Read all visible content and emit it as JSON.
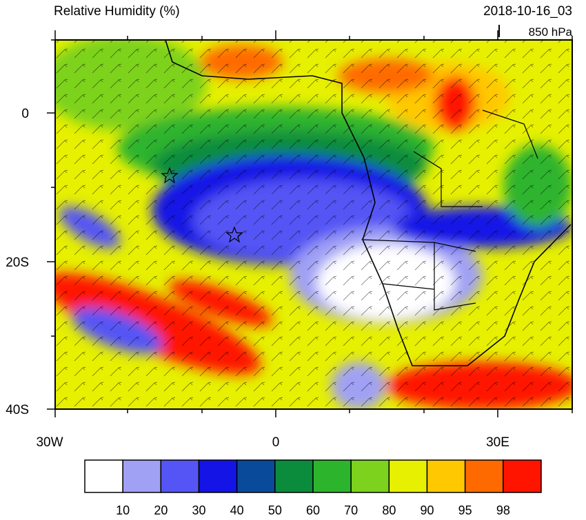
{
  "header": {
    "title": "Relative Humidity (%)",
    "datetime": "2018-10-16_03",
    "level": "850 hPa"
  },
  "axes": {
    "lat_labels": [
      "0",
      "20S",
      "40S"
    ],
    "lon_labels": [
      "30W",
      "0",
      "30E"
    ]
  },
  "colorbar": {
    "levels": [
      10,
      20,
      30,
      40,
      50,
      60,
      70,
      80,
      90,
      95,
      98
    ],
    "colors": [
      "#ffffff",
      "#a0a0f5",
      "#5555f5",
      "#1414e6",
      "#0a4a9a",
      "#0a8c3c",
      "#2db42d",
      "#7dd21e",
      "#e6f000",
      "#ffc800",
      "#ff6a00",
      "#ff1400"
    ]
  }
}
